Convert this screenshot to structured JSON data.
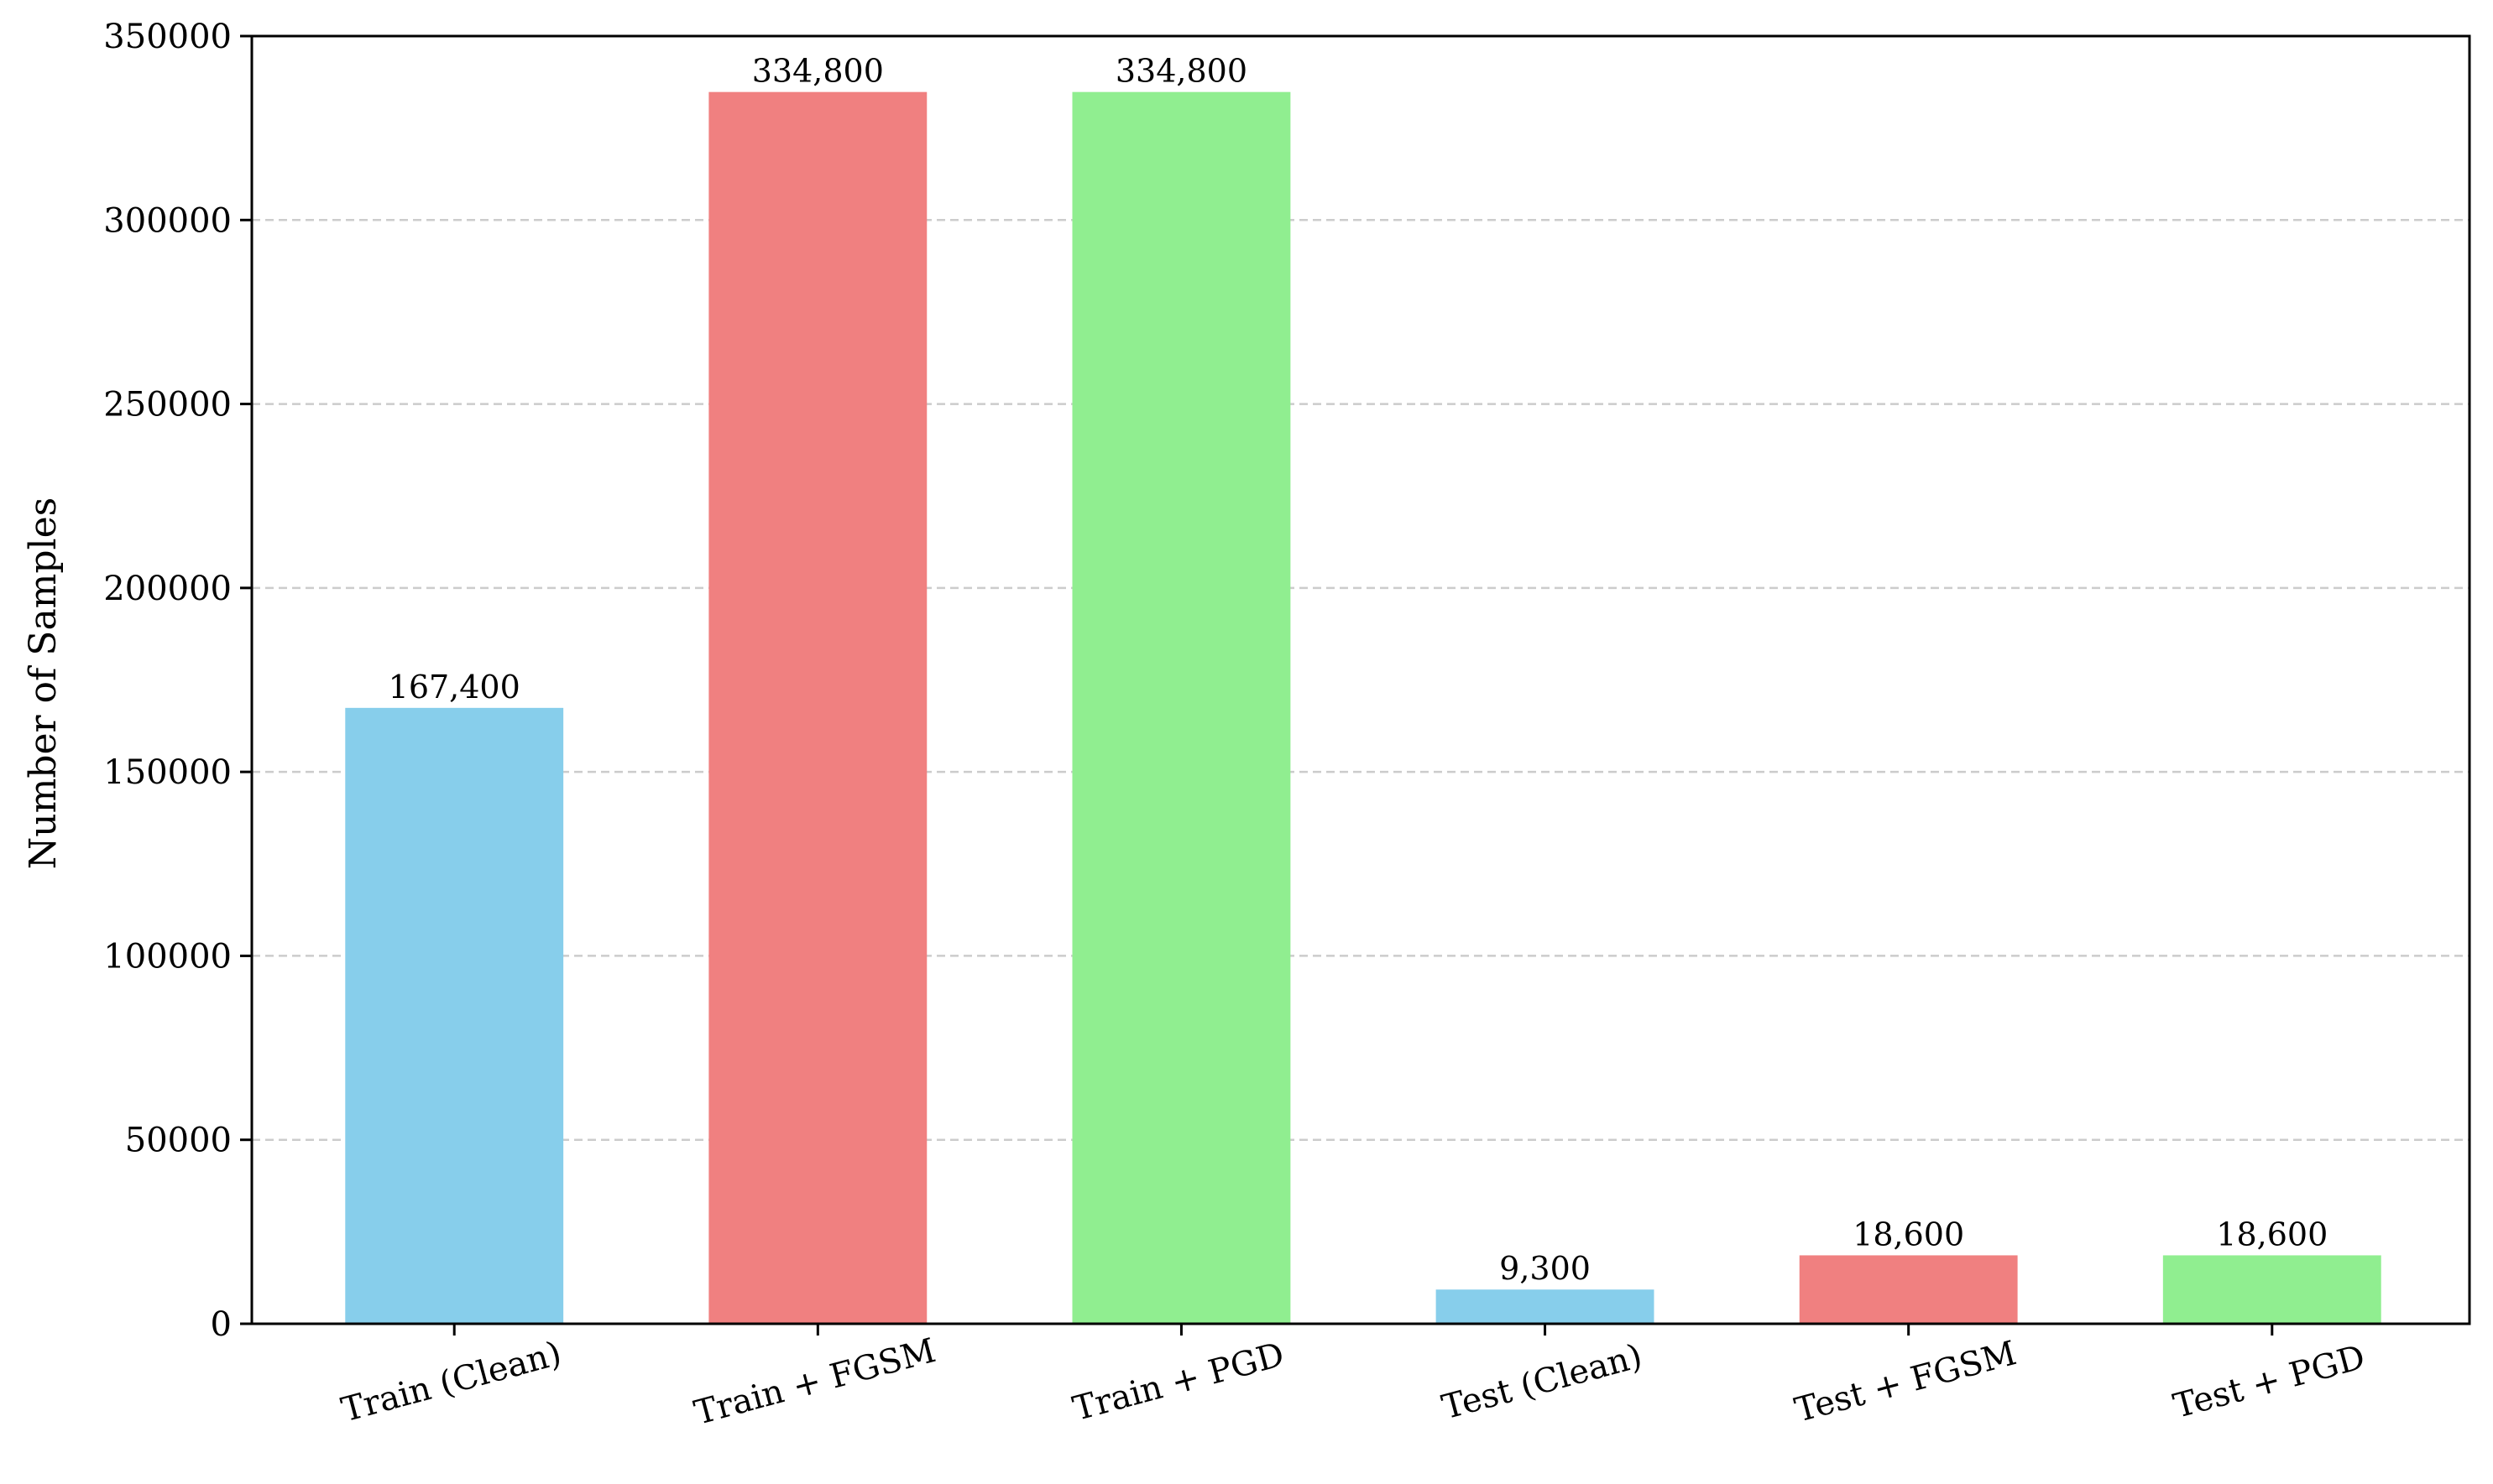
{
  "chart_data": {
    "type": "bar",
    "title": "",
    "xlabel": "",
    "ylabel": "Number of Samples",
    "categories": [
      "Train (Clean)",
      "Train + FGSM",
      "Train + PGD",
      "Test (Clean)",
      "Test + FGSM",
      "Test + PGD"
    ],
    "values": [
      167400,
      334800,
      334800,
      9300,
      18600,
      18600
    ],
    "value_labels": [
      "167,400",
      "334,800",
      "334,800",
      "9,300",
      "18,600",
      "18,600"
    ],
    "colors": [
      "#87ceeb",
      "#f08080",
      "#90ee90",
      "#87ceeb",
      "#f08080",
      "#90ee90"
    ],
    "ylim": [
      0,
      350000
    ],
    "yticks": [
      0,
      50000,
      100000,
      150000,
      200000,
      250000,
      300000,
      350000
    ],
    "ytick_labels": [
      "0",
      "50000",
      "100000",
      "150000",
      "200000",
      "250000",
      "300000",
      "350000"
    ],
    "grid": "y-axis dashed",
    "legend": "none"
  }
}
